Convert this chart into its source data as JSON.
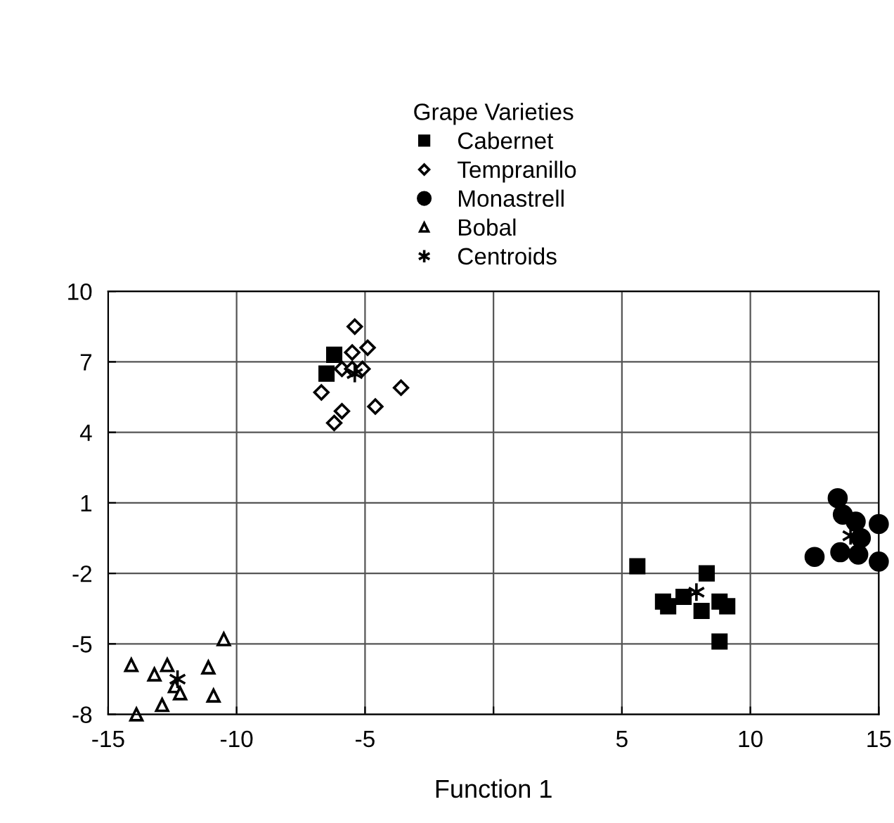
{
  "chart_data": {
    "type": "scatter",
    "xlabel": "Function 1",
    "legend_title": "Grape Varieties",
    "xlim": [
      -15,
      15
    ],
    "xticks": [
      -15,
      -10,
      -5,
      {
        "value": 0,
        "label": null
      },
      5,
      10,
      15
    ],
    "ylim": [
      -8,
      10
    ],
    "yticks": [
      -8,
      -5,
      -2,
      1,
      4,
      7,
      10
    ],
    "grid": true,
    "legend": "top",
    "series": [
      {
        "name": "Cabernet",
        "color": "#000000",
        "marker": "square",
        "x": [
          5.6,
          8.3,
          6.6,
          6.8,
          7.4,
          8.1,
          8.8,
          9.1,
          8.8,
          -6.2,
          -6.5
        ],
        "values": [
          -1.7,
          -2.0,
          -3.2,
          -3.4,
          -3.0,
          -3.6,
          -3.2,
          -3.4,
          -4.9,
          7.3,
          6.5
        ]
      },
      {
        "name": "Tempranillo",
        "color": "#000000",
        "marker": "diamond",
        "x": [
          -5.4,
          -5.5,
          -4.9,
          -5.9,
          -5.5,
          -5.1,
          -6.7,
          -3.6,
          -4.6,
          -5.9,
          -6.2
        ],
        "values": [
          8.5,
          7.4,
          7.6,
          6.7,
          6.7,
          6.7,
          5.7,
          5.9,
          5.1,
          4.9,
          4.4
        ]
      },
      {
        "name": "Monastrell",
        "color": "#000000",
        "marker": "circle",
        "x": [
          13.4,
          13.6,
          14.1,
          14.3,
          15.0,
          12.5,
          13.5,
          14.2,
          15.0
        ],
        "values": [
          1.2,
          0.5,
          0.2,
          -0.5,
          0.1,
          -1.3,
          -1.1,
          -1.2,
          -1.5
        ]
      },
      {
        "name": "Bobal",
        "color": "#000000",
        "marker": "triangle",
        "x": [
          -10.5,
          -14.1,
          -13.2,
          -12.7,
          -11.1,
          -12.4,
          -12.2,
          -10.9,
          -12.9,
          -13.9
        ],
        "values": [
          -4.8,
          -5.9,
          -6.3,
          -5.9,
          -6.0,
          -6.8,
          -7.1,
          -7.2,
          -7.6,
          -8.0
        ]
      },
      {
        "name": "Centroids",
        "color": "#000000",
        "marker": "cross",
        "x": [
          -5.4,
          7.9,
          13.9,
          -12.3
        ],
        "values": [
          6.5,
          -2.8,
          -0.4,
          -6.5
        ]
      }
    ]
  }
}
